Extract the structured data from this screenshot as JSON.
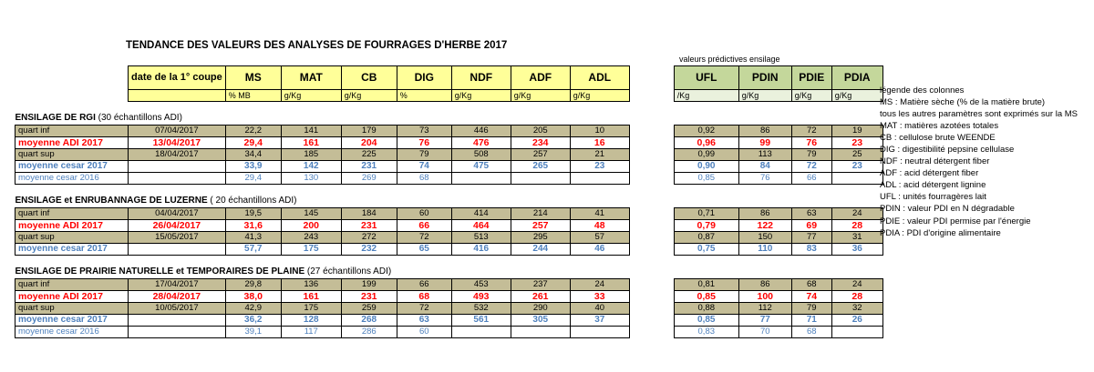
{
  "title": "TENDANCE DES VALEURS DES ANALYSES DE FOURRAGES D'HERBE 2017",
  "predictive_header": "valeurs prédictives ensilage",
  "columns": {
    "date": "date de la 1° coupe",
    "analysis": [
      "MS",
      "MAT",
      "CB",
      "DIG",
      "NDF",
      "ADF",
      "ADL"
    ],
    "predictive": [
      "UFL",
      "PDIN",
      "PDIE",
      "PDIA"
    ]
  },
  "units": {
    "analysis": [
      "% MB",
      "g/Kg",
      "g/Kg",
      "%",
      "g/Kg",
      "g/Kg",
      "g/Kg"
    ],
    "predictive": [
      "/Kg",
      "g/Kg",
      "g/Kg",
      "g/Kg"
    ]
  },
  "sections": [
    {
      "title": "ENSILAGE DE RGI",
      "subtitle": " (30 échantillons ADI)",
      "rows": [
        {
          "label": "quart inf",
          "kind": "qi",
          "date": "07/04/2017",
          "values": [
            "22,2",
            "141",
            "179",
            "73",
            "446",
            "205",
            "10"
          ],
          "pred": [
            "0,92",
            "86",
            "72",
            "19"
          ]
        },
        {
          "label": "moyenne ADI 2017",
          "kind": "moy",
          "date": "13/04/2017",
          "values": [
            "29,4",
            "161",
            "204",
            "76",
            "476",
            "234",
            "16"
          ],
          "pred": [
            "0,96",
            "99",
            "76",
            "23"
          ]
        },
        {
          "label": "quart sup",
          "kind": "qs",
          "date": "18/04/2017",
          "values": [
            "34,4",
            "185",
            "225",
            "79",
            "508",
            "257",
            "21"
          ],
          "pred": [
            "0,99",
            "113",
            "79",
            "25"
          ]
        },
        {
          "label": "moyenne cesar 2017",
          "kind": "cz",
          "date": "",
          "values": [
            "33,9",
            "142",
            "231",
            "74",
            "475",
            "265",
            "23"
          ],
          "pred": [
            "0,90",
            "84",
            "72",
            "23"
          ]
        },
        {
          "label": "moyenne cesar 2016",
          "kind": "cz16",
          "date": "",
          "values": [
            "29,4",
            "130",
            "269",
            "68",
            "",
            "",
            ""
          ],
          "pred": [
            "0,85",
            "76",
            "66",
            ""
          ]
        }
      ]
    },
    {
      "title": "ENSILAGE et ENRUBANNAGE DE LUZERNE",
      "subtitle": " ( 20 échantillons ADI)",
      "rows": [
        {
          "label": "quart inf",
          "kind": "qi",
          "date": "04/04/2017",
          "values": [
            "19,5",
            "145",
            "184",
            "60",
            "414",
            "214",
            "41"
          ],
          "pred": [
            "0,71",
            "86",
            "63",
            "24"
          ]
        },
        {
          "label": "moyenne ADI 2017",
          "kind": "moy",
          "date": "26/04/2017",
          "values": [
            "31,6",
            "200",
            "231",
            "66",
            "464",
            "257",
            "48"
          ],
          "pred": [
            "0,79",
            "122",
            "69",
            "28"
          ]
        },
        {
          "label": "quart sup",
          "kind": "qs",
          "date": "15/05/2017",
          "values": [
            "41,3",
            "243",
            "272",
            "72",
            "513",
            "295",
            "57"
          ],
          "pred": [
            "0,87",
            "150",
            "77",
            "31"
          ]
        },
        {
          "label": "moyenne cesar 2017",
          "kind": "cz",
          "date": "",
          "values": [
            "57,7",
            "175",
            "232",
            "65",
            "416",
            "244",
            "46"
          ],
          "pred": [
            "0,75",
            "110",
            "83",
            "36"
          ]
        }
      ]
    },
    {
      "title": "ENSILAGE DE PRAIRIE NATURELLE et TEMPORAIRES DE PLAINE",
      "subtitle": " (27 échantillons ADI)",
      "rows": [
        {
          "label": "quart inf",
          "kind": "qi",
          "date": "17/04/2017",
          "values": [
            "29,8",
            "136",
            "199",
            "66",
            "453",
            "237",
            "24"
          ],
          "pred": [
            "0,81",
            "86",
            "68",
            "24"
          ]
        },
        {
          "label": "moyenne ADI 2017",
          "kind": "moy",
          "date": "28/04/2017",
          "values": [
            "38,0",
            "161",
            "231",
            "68",
            "493",
            "261",
            "33"
          ],
          "pred": [
            "0,85",
            "100",
            "74",
            "28"
          ]
        },
        {
          "label": "quart sup",
          "kind": "qs",
          "date": "10/05/2017",
          "values": [
            "42,9",
            "175",
            "259",
            "72",
            "532",
            "290",
            "40"
          ],
          "pred": [
            "0,88",
            "112",
            "79",
            "32"
          ]
        },
        {
          "label": "moyenne cesar 2017",
          "kind": "cz",
          "date": "",
          "values": [
            "36,2",
            "128",
            "268",
            "63",
            "561",
            "305",
            "37"
          ],
          "pred": [
            "0,85",
            "77",
            "71",
            "26"
          ]
        },
        {
          "label": "moyenne cesar 2016",
          "kind": "cz16",
          "date": "",
          "values": [
            "39,1",
            "117",
            "286",
            "60",
            "",
            "",
            ""
          ],
          "pred": [
            "0,83",
            "70",
            "68",
            ""
          ]
        }
      ]
    }
  ],
  "legend": [
    "légende des colonnes",
    "MS : Matière sèche (% de la matière brute)",
    "tous les autres paramètres sont exprimés sur la MS",
    "MAT : matières azotées totales",
    "CB : cellulose brute WEENDE",
    "DIG : digestibilité pepsine cellulase",
    "NDF : neutral détergent fiber",
    "ADF : acid détergent fiber",
    "ADL : acid détergent lignine",
    "UFL : unités fourragères lait",
    "PDIN : valeur PDI en N dégradable",
    "PDIE : valeur PDI permise par l'énergie",
    "PDIA : PDI d'origine alimentaire"
  ]
}
